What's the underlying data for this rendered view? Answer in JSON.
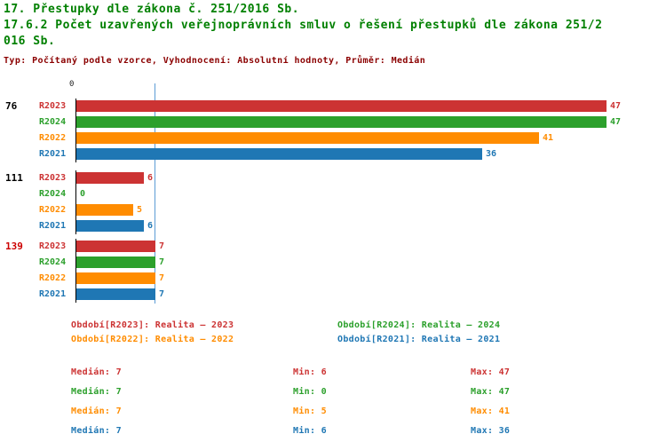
{
  "header": {
    "title": "17. Přestupky dle zákona č. 251/2016 Sb.",
    "subtitle": "17.6.2 Počet uzavřených veřejnoprávních smluv o řešení přestupků dle zákona 251/2016 Sb.",
    "meta": "Typ: Počítaný podle vzorce, Vyhodnocení: Absolutní hodnoty, Průměr: Medián"
  },
  "colors": {
    "title": "#008000",
    "meta": "#8B0000",
    "axis": "#000000",
    "median_line": "#5B9BD5",
    "group_label_default": "#000000",
    "group_label_highlight": "#CC0000",
    "series": {
      "R2023": "#CC3333",
      "R2024": "#2CA02C",
      "R2022": "#FF8C00",
      "R2021": "#1F77B4"
    }
  },
  "chart_data": {
    "type": "bar",
    "orientation": "horizontal",
    "title": "17.6.2 Počet uzavřených veřejnoprávních smluv o řešení přestupků dle zákona 251/2016 Sb.",
    "xlim": [
      0,
      47
    ],
    "axis_origin_label": "0",
    "median_value": 7,
    "grid": false,
    "series_order": [
      "R2023",
      "R2024",
      "R2022",
      "R2021"
    ],
    "categories": [
      "76",
      "111",
      "139"
    ],
    "groups": [
      {
        "label": "76",
        "highlighted": false,
        "values": [
          {
            "series": "R2023",
            "value": 47
          },
          {
            "series": "R2024",
            "value": 47
          },
          {
            "series": "R2022",
            "value": 41
          },
          {
            "series": "R2021",
            "value": 36
          }
        ]
      },
      {
        "label": "111",
        "highlighted": false,
        "values": [
          {
            "series": "R2023",
            "value": 6
          },
          {
            "series": "R2024",
            "value": 0
          },
          {
            "series": "R2022",
            "value": 5
          },
          {
            "series": "R2021",
            "value": 6
          }
        ]
      },
      {
        "label": "139",
        "highlighted": true,
        "values": [
          {
            "series": "R2023",
            "value": 7
          },
          {
            "series": "R2024",
            "value": 7
          },
          {
            "series": "R2022",
            "value": 7
          },
          {
            "series": "R2021",
            "value": 7
          }
        ]
      }
    ],
    "legend": [
      {
        "series": "R2023",
        "label": "Období[R2023]: Realita – 2023"
      },
      {
        "series": "R2024",
        "label": "Období[R2024]: Realita – 2024"
      },
      {
        "series": "R2022",
        "label": "Období[R2022]: Realita – 2022"
      },
      {
        "series": "R2021",
        "label": "Období[R2021]: Realita – 2021"
      }
    ],
    "stats_labels": {
      "median": "Medián",
      "min": "Min",
      "max": "Max"
    },
    "stats": [
      {
        "series": "R2023",
        "median": 7,
        "min": 6,
        "max": 47
      },
      {
        "series": "R2024",
        "median": 7,
        "min": 0,
        "max": 47
      },
      {
        "series": "R2022",
        "median": 7,
        "min": 5,
        "max": 41
      },
      {
        "series": "R2021",
        "median": 7,
        "min": 6,
        "max": 36
      }
    ]
  }
}
